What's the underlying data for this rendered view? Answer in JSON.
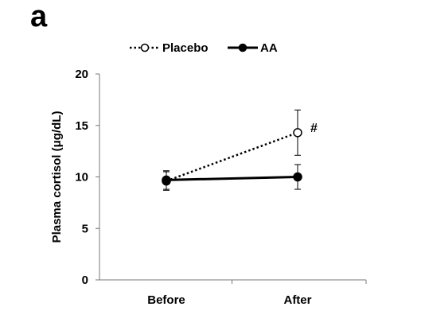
{
  "panel_label": "a",
  "chart_data": {
    "type": "line",
    "title": "",
    "xlabel": "",
    "ylabel": "Plasma cortisol (μg/dL)",
    "categories": [
      "Before",
      "After"
    ],
    "ylim": [
      0,
      20
    ],
    "yticks": [
      0,
      5,
      10,
      15,
      20
    ],
    "grid": false,
    "legend_position": "top",
    "series": [
      {
        "name": "Placebo",
        "values": [
          9.6,
          14.3
        ],
        "errors": [
          0.9,
          2.2
        ],
        "style": "dotted",
        "marker": "open-circle",
        "color": "#000000"
      },
      {
        "name": "AA",
        "values": [
          9.7,
          10.0
        ],
        "errors": [
          0.9,
          1.2
        ],
        "style": "solid",
        "marker": "filled-circle",
        "color": "#000000"
      }
    ],
    "annotations": [
      {
        "text": "#",
        "series": 0,
        "category": 1
      }
    ]
  }
}
